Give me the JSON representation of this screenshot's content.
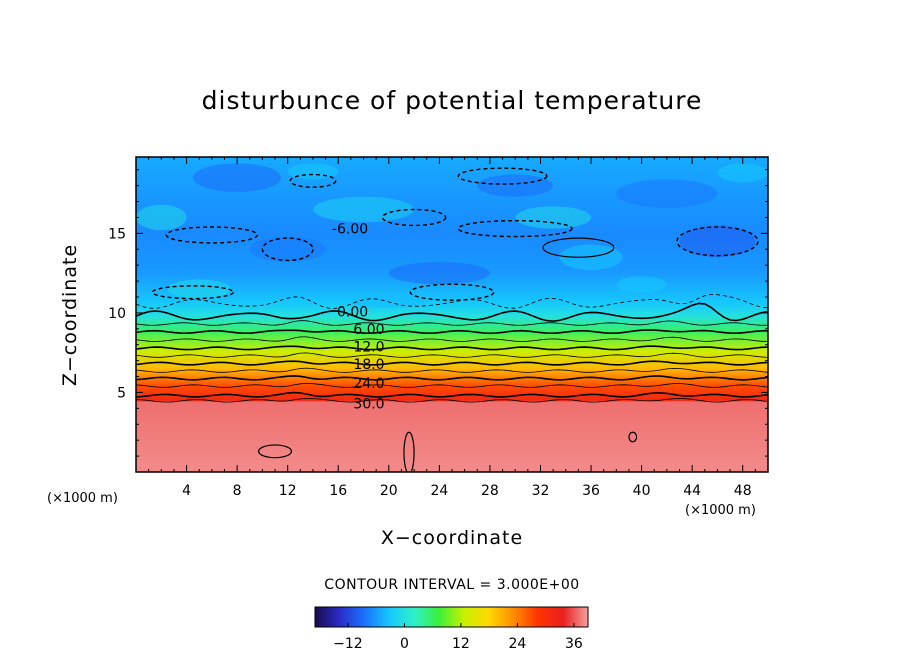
{
  "title": "disturbunce of potential temperature",
  "ylabel": "Z−coordinate",
  "xlabel": "X−coordinate",
  "x_unit_left": "(×1000 m)",
  "x_unit_right": "(×1000 m)",
  "contour_interval_text": "CONTOUR INTERVAL = 3.000E+00",
  "chart_data": {
    "type": "heatmap",
    "title": "disturbunce of potential temperature",
    "xlabel": "X−coordinate",
    "ylabel": "Z−coordinate",
    "x_unit": "(×1000 m)",
    "xlim": [
      0,
      50
    ],
    "ylim": [
      0,
      19.8
    ],
    "x_ticks": [
      4,
      8,
      12,
      16,
      20,
      24,
      28,
      32,
      36,
      40,
      44,
      48
    ],
    "y_ticks": [
      5,
      10,
      15
    ],
    "contour_interval": 3.0,
    "z_profile": [
      {
        "z": 0.5,
        "value": 38
      },
      {
        "z": 4.4,
        "value": 37
      },
      {
        "z": 4.5,
        "value": 31.5
      },
      {
        "z": 5.4,
        "value": 27
      },
      {
        "z": 6.5,
        "value": 20
      },
      {
        "z": 7.6,
        "value": 13
      },
      {
        "z": 8.8,
        "value": 6
      },
      {
        "z": 9.8,
        "value": 0
      },
      {
        "z": 10.6,
        "value": -3
      },
      {
        "z": 12.5,
        "value": -6
      },
      {
        "z": 15.0,
        "value": -7
      },
      {
        "z": 17.5,
        "value": -6
      },
      {
        "z": 19.8,
        "value": -5
      }
    ],
    "contour_labels": [
      {
        "x": 15.5,
        "z": 15.3,
        "text": "-6.00"
      },
      {
        "x": 15.9,
        "z": 10.1,
        "text": "0.00"
      },
      {
        "x": 17.2,
        "z": 9.0,
        "text": "6.00"
      },
      {
        "x": 17.2,
        "z": 7.9,
        "text": "12.0"
      },
      {
        "x": 17.2,
        "z": 6.8,
        "text": "18.0"
      },
      {
        "x": 17.2,
        "z": 5.6,
        "text": "24.0"
      },
      {
        "x": 17.2,
        "z": 4.3,
        "text": "30.0"
      }
    ],
    "colorbar": {
      "range": [
        -19,
        39
      ],
      "ticks": [
        -12,
        0,
        12,
        24,
        36
      ],
      "colors": [
        "#1a0a4e",
        "#2a2cc8",
        "#1a72ff",
        "#15c8ff",
        "#30f0c8",
        "#3cf03c",
        "#c8f000",
        "#ffd800",
        "#ff8c00",
        "#ff3300",
        "#e82020",
        "#f4a0a0"
      ]
    }
  }
}
